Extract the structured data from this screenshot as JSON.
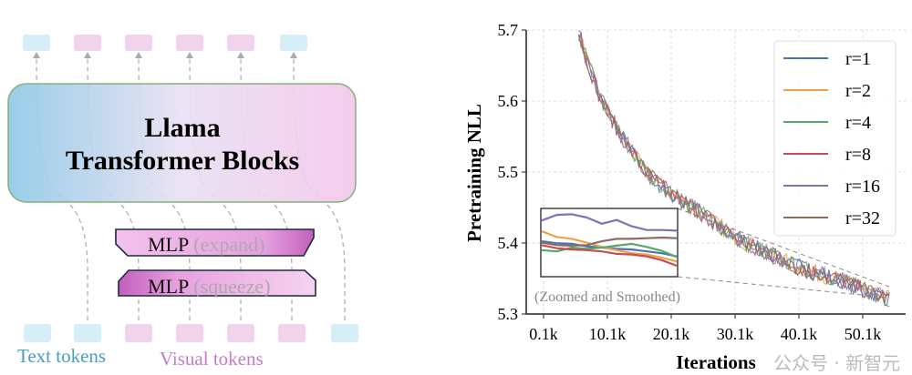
{
  "diagram": {
    "block_title_line1": "Llama",
    "block_title_line2": "Transformer Blocks",
    "mlp_expand": {
      "name": "MLP",
      "note": "(expand)"
    },
    "mlp_squeeze": {
      "name": "MLP",
      "note": "(squeeze)"
    },
    "text_tokens_label": "Text tokens",
    "visual_tokens_label": "Visual tokens",
    "top_tokens": [
      "text",
      "visual",
      "visual",
      "visual",
      "visual",
      "text"
    ],
    "bottom_tokens": [
      "text",
      "text",
      "visual",
      "visual",
      "visual",
      "visual",
      "text"
    ],
    "colors": {
      "text": "#4a9cc0",
      "visual": "#c47dc4",
      "text_token_fill": "#d5eef7",
      "visual_token_fill": "#f1d3ec"
    }
  },
  "watermark": "公众号 · 新智元",
  "chart_data": {
    "type": "line",
    "xlabel": "Iterations",
    "ylabel": "Pretraining NLL",
    "ylim": [
      5.3,
      5.7
    ],
    "xlim": [
      -2.5,
      63
    ],
    "xticks": [
      0.1,
      10.1,
      20.1,
      30.1,
      40.1,
      50.1
    ],
    "xtick_labels": [
      "0.1k",
      "10.1k",
      "20.1k",
      "30.1k",
      "40.1k",
      "50.1k"
    ],
    "yticks": [
      5.3,
      5.4,
      5.5,
      5.6,
      5.7
    ],
    "ytick_labels": [
      "5.3",
      "5.4",
      "5.5",
      "5.6",
      "5.7"
    ],
    "grid": true,
    "legend_position": "top-right",
    "base_curve": {
      "x_k": [
        5.5,
        7,
        9.2,
        12,
        16,
        20,
        23.5,
        27.5,
        31.7,
        35,
        38.8,
        42,
        46,
        50,
        54.5
      ],
      "y": [
        5.7,
        5.655,
        5.6,
        5.555,
        5.5,
        5.47,
        5.45,
        5.425,
        5.4,
        5.387,
        5.37,
        5.36,
        5.35,
        5.335,
        5.32
      ]
    },
    "noise_amplitude": 0.012,
    "series": [
      {
        "name": "r=1",
        "color": "#4c72b0"
      },
      {
        "name": "r=2",
        "color": "#f0a04b"
      },
      {
        "name": "r=4",
        "color": "#55a868"
      },
      {
        "name": "r=8",
        "color": "#c44e52"
      },
      {
        "name": "r=16",
        "color": "#8172b2"
      },
      {
        "name": "r=32",
        "color": "#8c6d62"
      }
    ],
    "inset": {
      "label": "(Zoomed and Smoothed)",
      "ylim": [
        0,
        10
      ],
      "series": {
        "r=1": [
          5.2,
          4.9,
          4.8,
          4.4,
          4.2,
          4.0,
          3.9,
          3.6,
          3.3,
          2.8
        ],
        "r=2": [
          6.8,
          5.9,
          5.6,
          5.0,
          4.3,
          3.8,
          3.3,
          3.1,
          2.6,
          2.0
        ],
        "r=4": [
          3.8,
          3.6,
          4.2,
          4.0,
          4.2,
          4.5,
          4.8,
          4.3,
          3.7,
          2.7
        ],
        "r=8": [
          4.6,
          4.1,
          3.9,
          3.8,
          3.6,
          3.2,
          3.1,
          2.8,
          2.2,
          1.3
        ],
        "r=16": [
          8.5,
          9.4,
          9.5,
          9.0,
          8.0,
          8.6,
          7.6,
          7.0,
          7.0,
          6.9
        ],
        "r=32": [
          5.0,
          4.6,
          4.5,
          4.6,
          5.2,
          5.6,
          5.6,
          5.7,
          5.8,
          5.7
        ]
      }
    }
  }
}
